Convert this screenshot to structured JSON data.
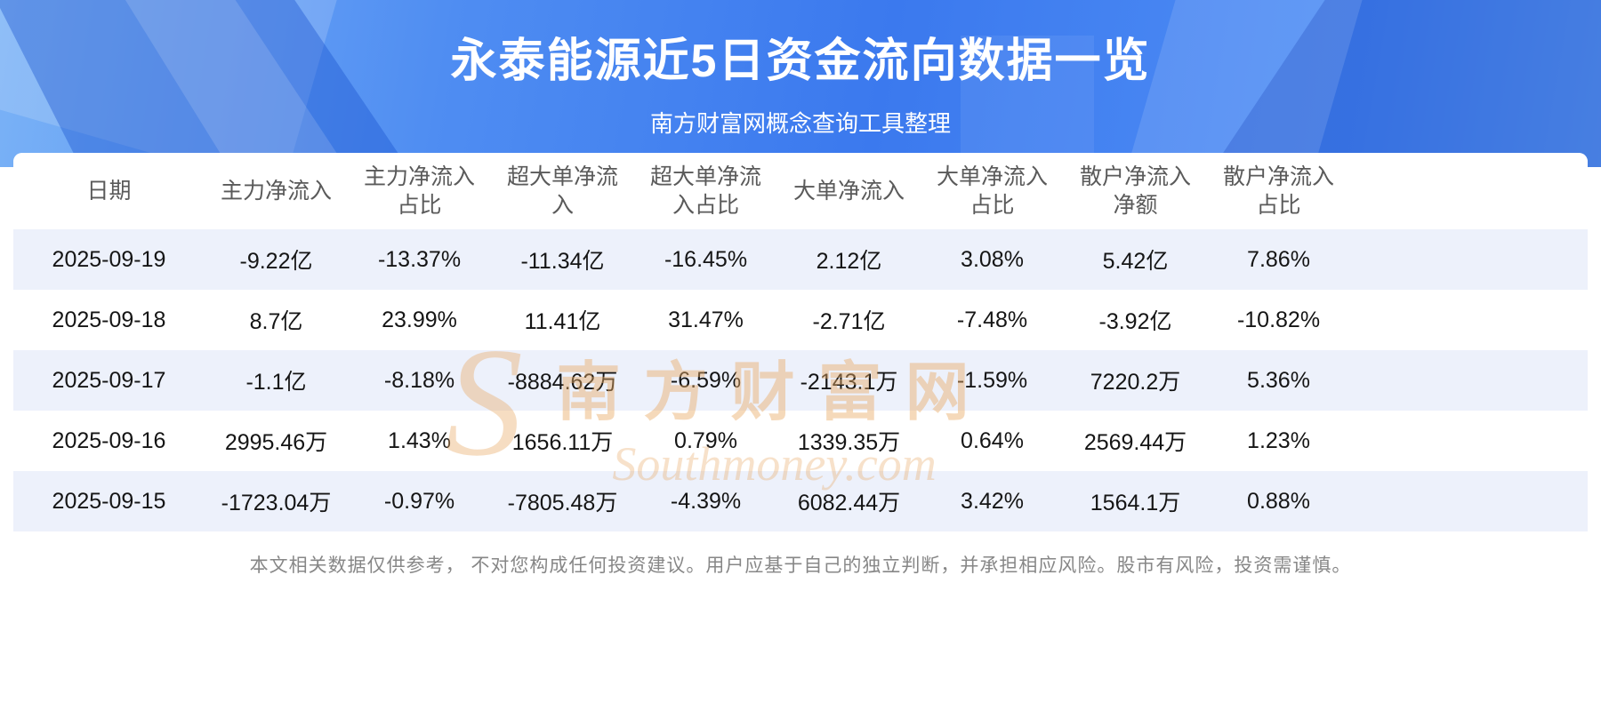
{
  "header": {
    "title": "永泰能源近5日资金流向数据一览",
    "subtitle": "南方财富网概念查询工具整理"
  },
  "chart_data": {
    "type": "table",
    "title": "永泰能源近5日资金流向数据一览",
    "columns": [
      "日期",
      "主力净流入",
      "主力净流入占比",
      "超大单净流入",
      "超大单净流入占比",
      "大单净流入",
      "大单净流入占比",
      "散户净流入净额",
      "散户净流入占比"
    ],
    "rows": [
      [
        "2025-09-19",
        "-9.22亿",
        "-13.37%",
        "-11.34亿",
        "-16.45%",
        "2.12亿",
        "3.08%",
        "5.42亿",
        "7.86%"
      ],
      [
        "2025-09-18",
        "8.7亿",
        "23.99%",
        "11.41亿",
        "31.47%",
        "-2.71亿",
        "-7.48%",
        "-3.92亿",
        "-10.82%"
      ],
      [
        "2025-09-17",
        "-1.1亿",
        "-8.18%",
        "-8884.62万",
        "-6.59%",
        "-2143.1万",
        "-1.59%",
        "7220.2万",
        "5.36%"
      ],
      [
        "2025-09-16",
        "2995.46万",
        "1.43%",
        "1656.11万",
        "0.79%",
        "1339.35万",
        "0.64%",
        "2569.44万",
        "1.23%"
      ],
      [
        "2025-09-15",
        "-1723.04万",
        "-0.97%",
        "-7805.48万",
        "-4.39%",
        "6082.44万",
        "3.42%",
        "1564.1万",
        "0.88%"
      ]
    ]
  },
  "watermark": {
    "s": "S",
    "line1": "南方财富网",
    "line2": "Southmoney.com"
  },
  "footer": {
    "disclaimer": "本文相关数据仅供参考， 不对您构成任何投资建议。用户应基于自己的独立判断，并承担相应风险。股市有风险，投资需谨慎。"
  }
}
